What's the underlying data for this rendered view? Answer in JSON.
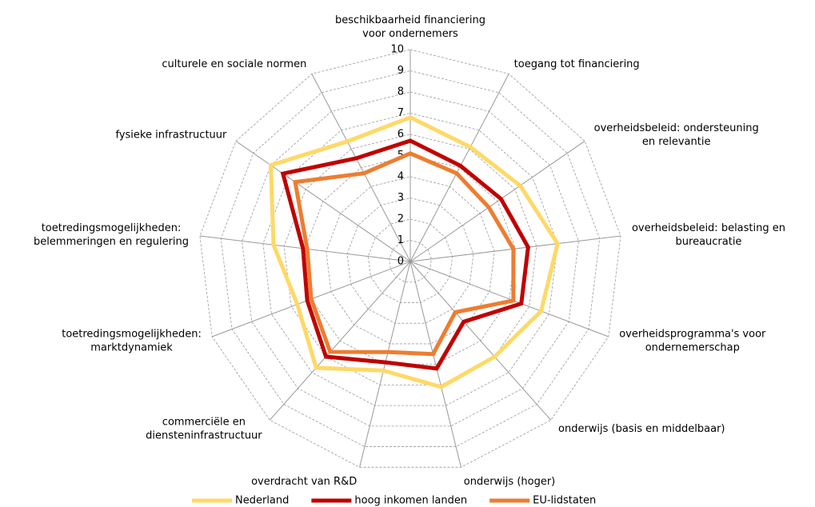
{
  "chart_data": {
    "type": "radar",
    "categories": [
      "beschikbaarheid financiering voor ondernemers",
      "toegang tot financiering",
      "overheidsbeleid: ondersteuning en relevantie",
      "overheidsbeleid: belasting en bureaucratie",
      "overheidsprogramma's voor ondernemerschap",
      "onderwijs (basis en middelbaar)",
      "onderwijs (hoger)",
      "overdracht van R&D",
      "commerciële en diensteninfrastructuur",
      "toetredingsmogelijkheden: marktdynamiek",
      "toetredingsmogelijkheden: belemmeringen en regulering",
      "fysieke infrastructuur",
      "culturele en sociale normen"
    ],
    "series": [
      {
        "name": "Nederland",
        "color": "#ffd966",
        "values": [
          6.8,
          6.1,
          6.3,
          7.0,
          6.6,
          6.0,
          6.1,
          5.3,
          6.7,
          5.7,
          6.5,
          8.0,
          6.4
        ]
      },
      {
        "name": "hoog inkomen landen",
        "color": "#c00000",
        "values": [
          5.7,
          5.1,
          5.2,
          5.6,
          5.6,
          3.8,
          5.2,
          4.9,
          6.0,
          5.2,
          5.1,
          7.3,
          5.5
        ]
      },
      {
        "name": "EU-lidstaten",
        "color": "#ed7d31",
        "values": [
          5.1,
          4.7,
          4.5,
          4.9,
          5.2,
          3.2,
          4.5,
          4.4,
          5.7,
          5.0,
          4.9,
          6.6,
          4.7
        ]
      }
    ],
    "ylim": [
      0,
      10
    ],
    "yticks": [
      0,
      1,
      2,
      3,
      4,
      5,
      6,
      7,
      8,
      9,
      10
    ],
    "grid": true,
    "legend": "bottom"
  }
}
